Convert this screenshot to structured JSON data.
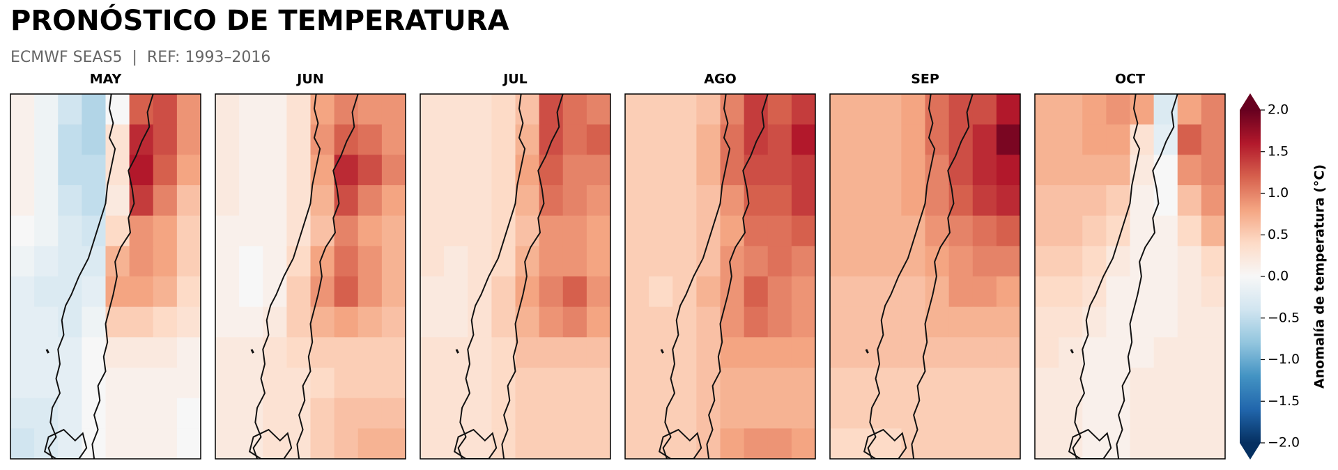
{
  "chart_data": {
    "type": "heatmap",
    "title": "PRONÓSTICO DE TEMPERATURA",
    "subtitle": "ECMWF SEAS5  |  REF: 1993–2016",
    "colormap": "RdBu_r",
    "panels": [
      {
        "name": "MAY",
        "values": [
          [
            0.1,
            -0.1,
            -0.4,
            -0.6,
            0.0,
            1.2,
            1.3,
            0.9
          ],
          [
            0.1,
            -0.1,
            -0.5,
            -0.6,
            0.3,
            1.5,
            1.3,
            0.9
          ],
          [
            0.1,
            -0.1,
            -0.5,
            -0.5,
            0.3,
            1.6,
            1.2,
            0.8
          ],
          [
            0.1,
            -0.1,
            -0.4,
            -0.5,
            0.2,
            1.4,
            1.0,
            0.6
          ],
          [
            0.0,
            -0.1,
            -0.3,
            -0.4,
            0.4,
            0.9,
            0.8,
            0.5
          ],
          [
            -0.1,
            -0.2,
            -0.3,
            -0.3,
            0.7,
            0.9,
            0.8,
            0.5
          ],
          [
            -0.2,
            -0.3,
            -0.3,
            -0.2,
            0.8,
            0.8,
            0.7,
            0.4
          ],
          [
            -0.2,
            -0.2,
            -0.3,
            -0.1,
            0.5,
            0.5,
            0.4,
            0.3
          ],
          [
            -0.2,
            -0.2,
            -0.2,
            0.0,
            0.2,
            0.2,
            0.2,
            0.1
          ],
          [
            -0.2,
            -0.2,
            -0.2,
            0.0,
            0.1,
            0.1,
            0.1,
            0.1
          ],
          [
            -0.3,
            -0.3,
            -0.2,
            0.0,
            0.1,
            0.1,
            0.1,
            0.0
          ],
          [
            -0.4,
            -0.3,
            -0.2,
            0.0,
            0.1,
            0.1,
            0.1,
            0.0
          ]
        ]
      },
      {
        "name": "JUN",
        "values": [
          [
            0.2,
            0.1,
            0.1,
            0.3,
            0.8,
            1.0,
            0.9,
            0.9
          ],
          [
            0.2,
            0.1,
            0.1,
            0.3,
            0.9,
            1.2,
            1.1,
            0.9
          ],
          [
            0.2,
            0.1,
            0.1,
            0.3,
            0.8,
            1.5,
            1.3,
            1.0
          ],
          [
            0.2,
            0.1,
            0.1,
            0.3,
            0.7,
            1.3,
            1.0,
            0.8
          ],
          [
            0.1,
            0.1,
            0.1,
            0.3,
            0.6,
            1.0,
            0.8,
            0.7
          ],
          [
            0.1,
            0.0,
            0.1,
            0.4,
            0.8,
            1.1,
            0.9,
            0.7
          ],
          [
            0.1,
            0.0,
            0.1,
            0.5,
            0.9,
            1.2,
            0.9,
            0.7
          ],
          [
            0.1,
            0.1,
            0.2,
            0.5,
            0.7,
            0.8,
            0.7,
            0.6
          ],
          [
            0.2,
            0.2,
            0.3,
            0.4,
            0.5,
            0.5,
            0.5,
            0.5
          ],
          [
            0.2,
            0.2,
            0.3,
            0.3,
            0.4,
            0.5,
            0.5,
            0.5
          ],
          [
            0.2,
            0.2,
            0.3,
            0.3,
            0.5,
            0.6,
            0.6,
            0.6
          ],
          [
            0.2,
            0.2,
            0.3,
            0.3,
            0.5,
            0.6,
            0.7,
            0.7
          ]
        ]
      },
      {
        "name": "JUL",
        "values": [
          [
            0.3,
            0.3,
            0.3,
            0.4,
            0.6,
            1.3,
            1.1,
            1.0
          ],
          [
            0.3,
            0.3,
            0.3,
            0.4,
            0.7,
            1.3,
            1.1,
            1.2
          ],
          [
            0.3,
            0.3,
            0.3,
            0.4,
            0.8,
            1.2,
            1.0,
            1.0
          ],
          [
            0.3,
            0.3,
            0.3,
            0.4,
            0.7,
            1.1,
            1.0,
            0.9
          ],
          [
            0.3,
            0.3,
            0.3,
            0.4,
            0.6,
            0.9,
            0.9,
            0.8
          ],
          [
            0.3,
            0.2,
            0.3,
            0.4,
            0.7,
            0.9,
            0.9,
            0.8
          ],
          [
            0.2,
            0.2,
            0.3,
            0.5,
            0.8,
            1.0,
            1.2,
            0.9
          ],
          [
            0.2,
            0.2,
            0.3,
            0.5,
            0.7,
            0.9,
            1.0,
            0.8
          ],
          [
            0.3,
            0.3,
            0.3,
            0.4,
            0.6,
            0.6,
            0.6,
            0.6
          ],
          [
            0.3,
            0.3,
            0.3,
            0.4,
            0.5,
            0.5,
            0.5,
            0.5
          ],
          [
            0.3,
            0.3,
            0.3,
            0.4,
            0.5,
            0.5,
            0.5,
            0.5
          ],
          [
            0.3,
            0.3,
            0.3,
            0.4,
            0.5,
            0.5,
            0.5,
            0.5
          ]
        ]
      },
      {
        "name": "AGO",
        "values": [
          [
            0.5,
            0.5,
            0.5,
            0.6,
            1.0,
            1.4,
            1.2,
            1.4
          ],
          [
            0.5,
            0.5,
            0.5,
            0.7,
            1.1,
            1.4,
            1.3,
            1.6
          ],
          [
            0.5,
            0.5,
            0.5,
            0.7,
            1.1,
            1.3,
            1.3,
            1.4
          ],
          [
            0.5,
            0.5,
            0.5,
            0.6,
            0.9,
            1.2,
            1.2,
            1.4
          ],
          [
            0.5,
            0.5,
            0.5,
            0.6,
            0.8,
            1.1,
            1.1,
            1.2
          ],
          [
            0.5,
            0.5,
            0.5,
            0.6,
            0.9,
            1.0,
            1.1,
            1.0
          ],
          [
            0.5,
            0.4,
            0.5,
            0.7,
            0.9,
            1.2,
            1.0,
            0.9
          ],
          [
            0.5,
            0.5,
            0.5,
            0.6,
            0.9,
            1.1,
            1.0,
            0.9
          ],
          [
            0.5,
            0.5,
            0.5,
            0.6,
            0.8,
            0.8,
            0.8,
            0.8
          ],
          [
            0.5,
            0.5,
            0.5,
            0.6,
            0.7,
            0.7,
            0.7,
            0.7
          ],
          [
            0.5,
            0.5,
            0.5,
            0.6,
            0.7,
            0.7,
            0.7,
            0.7
          ],
          [
            0.5,
            0.5,
            0.5,
            0.6,
            0.8,
            0.9,
            0.9,
            0.8
          ]
        ]
      },
      {
        "name": "SEP",
        "values": [
          [
            0.7,
            0.7,
            0.7,
            0.8,
            1.1,
            1.3,
            1.3,
            1.6
          ],
          [
            0.7,
            0.7,
            0.7,
            0.8,
            1.1,
            1.3,
            1.5,
            1.9
          ],
          [
            0.7,
            0.7,
            0.7,
            0.8,
            1.0,
            1.3,
            1.5,
            1.6
          ],
          [
            0.7,
            0.7,
            0.7,
            0.8,
            1.0,
            1.2,
            1.4,
            1.5
          ],
          [
            0.7,
            0.7,
            0.7,
            0.7,
            0.9,
            1.0,
            1.1,
            1.2
          ],
          [
            0.7,
            0.7,
            0.7,
            0.7,
            0.8,
            0.9,
            1.0,
            1.0
          ],
          [
            0.6,
            0.6,
            0.6,
            0.6,
            0.7,
            0.9,
            0.9,
            0.8
          ],
          [
            0.6,
            0.6,
            0.6,
            0.6,
            0.7,
            0.7,
            0.7,
            0.7
          ],
          [
            0.6,
            0.6,
            0.6,
            0.6,
            0.6,
            0.6,
            0.6,
            0.6
          ],
          [
            0.5,
            0.5,
            0.5,
            0.5,
            0.5,
            0.5,
            0.5,
            0.5
          ],
          [
            0.5,
            0.5,
            0.5,
            0.5,
            0.5,
            0.5,
            0.5,
            0.5
          ],
          [
            0.4,
            0.4,
            0.4,
            0.5,
            0.5,
            0.5,
            0.5,
            0.5
          ]
        ]
      },
      {
        "name": "OCT",
        "values": [
          [
            0.7,
            0.7,
            0.8,
            0.9,
            0.8,
            -0.3,
            0.8,
            1.0
          ],
          [
            0.7,
            0.7,
            0.8,
            0.8,
            0.3,
            -0.2,
            1.2,
            1.0
          ],
          [
            0.7,
            0.7,
            0.7,
            0.7,
            0.2,
            0.0,
            0.9,
            1.0
          ],
          [
            0.6,
            0.6,
            0.6,
            0.5,
            0.1,
            0.0,
            0.6,
            0.9
          ],
          [
            0.6,
            0.6,
            0.5,
            0.4,
            0.1,
            0.1,
            0.4,
            0.7
          ],
          [
            0.5,
            0.5,
            0.4,
            0.2,
            0.1,
            0.1,
            0.2,
            0.4
          ],
          [
            0.4,
            0.4,
            0.3,
            0.1,
            0.1,
            0.1,
            0.2,
            0.3
          ],
          [
            0.3,
            0.3,
            0.2,
            0.1,
            0.1,
            0.1,
            0.2,
            0.2
          ],
          [
            0.3,
            0.2,
            0.1,
            0.1,
            0.1,
            0.2,
            0.2,
            0.2
          ],
          [
            0.2,
            0.2,
            0.1,
            0.1,
            0.2,
            0.2,
            0.2,
            0.2
          ],
          [
            0.2,
            0.2,
            0.1,
            0.1,
            0.2,
            0.2,
            0.2,
            0.2
          ],
          [
            0.2,
            0.2,
            0.1,
            0.1,
            0.2,
            0.2,
            0.2,
            0.2
          ]
        ]
      }
    ],
    "colorbar": {
      "label": "Anomalía de temperatura (°C)",
      "vlim": [
        -2.0,
        2.0
      ],
      "ticks": [
        {
          "value": 2.0,
          "label": "2.0"
        },
        {
          "value": 1.5,
          "label": "1.5"
        },
        {
          "value": 1.0,
          "label": "1.0"
        },
        {
          "value": 0.5,
          "label": "0.5"
        },
        {
          "value": 0.0,
          "label": "0.0"
        },
        {
          "value": -0.5,
          "label": "−0.5"
        },
        {
          "value": -1.0,
          "label": "−1.0"
        },
        {
          "value": -1.5,
          "label": "−1.5"
        },
        {
          "value": -2.0,
          "label": "−2.0"
        }
      ]
    }
  }
}
